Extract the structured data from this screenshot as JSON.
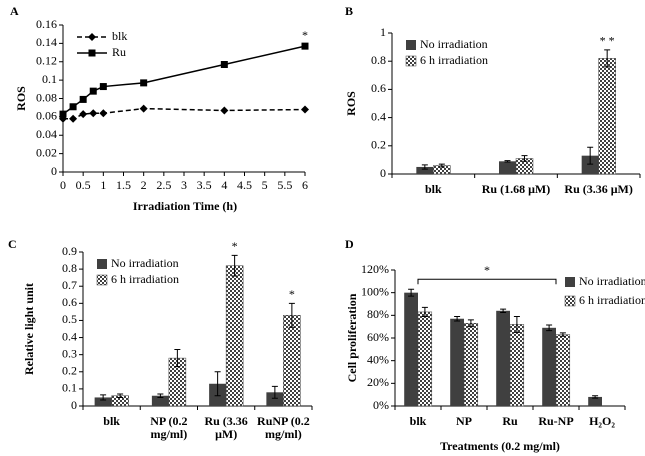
{
  "chart_data": [
    {
      "type": "line",
      "label": "A",
      "y_label": "ROS",
      "x_label": "Irradiation Time (h)",
      "x": [
        0,
        0.25,
        0.5,
        0.75,
        1,
        2,
        4,
        6
      ],
      "series": [
        {
          "name": "blk",
          "color": "#000000",
          "dash": true,
          "marker": "diamond",
          "values": [
            0.058,
            0.058,
            0.063,
            0.064,
            0.064,
            0.069,
            0.067,
            0.068
          ]
        },
        {
          "name": "Ru",
          "color": "#000000",
          "dash": false,
          "marker": "square",
          "values": [
            0.063,
            0.071,
            0.079,
            0.088,
            0.093,
            0.097,
            0.117,
            0.137
          ]
        }
      ],
      "xlim": [
        0,
        6
      ],
      "xticks": [
        0,
        0.5,
        1,
        1.5,
        2,
        2.5,
        3,
        3.5,
        4,
        4.5,
        5,
        5.5,
        6
      ],
      "ylim": [
        0,
        0.16
      ],
      "yticks": [
        0,
        0.02,
        0.04,
        0.06,
        0.08,
        0.1,
        0.12,
        0.14,
        0.16
      ],
      "legend": "top-left",
      "annotations": [
        {
          "text": "*",
          "x": 6
        }
      ]
    },
    {
      "type": "bar",
      "label": "B",
      "y_label": "ROS",
      "categories": [
        "blk",
        "Ru (1.68 μM)",
        "Ru (3.36 μM)"
      ],
      "series": [
        {
          "name": "No irradiation",
          "color": "#404040",
          "pattern": "solid",
          "values": [
            0.05,
            0.09,
            0.13
          ],
          "errors": [
            0.015,
            0.005,
            0.06
          ]
        },
        {
          "name": "6 h irradiation",
          "color": "#404040",
          "pattern": "checker",
          "values": [
            0.06,
            0.11,
            0.82
          ],
          "errors": [
            0.01,
            0.02,
            0.06
          ]
        }
      ],
      "ylim": [
        0,
        1
      ],
      "yticks": [
        0,
        0.2,
        0.4,
        0.6,
        0.8,
        1
      ],
      "legend": "top-left",
      "annotations": [
        {
          "text": "* *",
          "category": "Ru (3.36 μM)"
        }
      ]
    },
    {
      "type": "bar",
      "label": "C",
      "y_label": "Relative light unit",
      "wrap_labels": true,
      "categories": [
        "blk",
        "NP (0.2 mg/ml)",
        "Ru (3.36 μM)",
        "RuNP (0.2 mg/ml)"
      ],
      "series": [
        {
          "name": "No irradiation",
          "color": "#404040",
          "pattern": "solid",
          "values": [
            0.05,
            0.06,
            0.13,
            0.08
          ],
          "errors": [
            0.015,
            0.01,
            0.07,
            0.035
          ]
        },
        {
          "name": "6 h irradiation",
          "color": "#404040",
          "pattern": "checker",
          "values": [
            0.06,
            0.28,
            0.82,
            0.53
          ],
          "errors": [
            0.01,
            0.05,
            0.06,
            0.07
          ]
        }
      ],
      "ylim": [
        0,
        0.9
      ],
      "yticks": [
        0,
        0.1,
        0.2,
        0.3,
        0.4,
        0.5,
        0.6,
        0.7,
        0.8,
        0.9
      ],
      "legend": "top-left",
      "annotations": [
        {
          "text": "*",
          "category": "Ru (3.36 μM)"
        },
        {
          "text": "*",
          "category": "RuNP (0.2 mg/ml)"
        }
      ]
    },
    {
      "type": "bar",
      "label": "D",
      "y_label": "Cell proliferation",
      "x_label": "Treatments (0.2 mg/ml)",
      "categories": [
        "blk",
        "NP",
        "Ru",
        "Ru-NP",
        "H₂O₂"
      ],
      "series": [
        {
          "name": "No irradiation",
          "color": "#404040",
          "pattern": "solid",
          "values": [
            100,
            77,
            84,
            69,
            8
          ],
          "errors": [
            3,
            2,
            1.5,
            2.5,
            1
          ]
        },
        {
          "name": "6 h irradiation",
          "color": "#404040",
          "pattern": "checker",
          "values": [
            83,
            73,
            72,
            63,
            null
          ],
          "errors": [
            4,
            3,
            7,
            1.5,
            null
          ]
        }
      ],
      "ylim": [
        0,
        120
      ],
      "yticks": [
        {
          "value": 0,
          "label": "0%"
        },
        {
          "value": 20,
          "label": "20%"
        },
        {
          "value": 40,
          "label": "40%"
        },
        {
          "value": 60,
          "label": "60%"
        },
        {
          "value": 80,
          "label": "80%"
        },
        {
          "value": 100,
          "label": "100%"
        },
        {
          "value": 120,
          "label": "120%"
        }
      ],
      "legend": "right",
      "annotations": [
        {
          "text": "*",
          "from": "blk",
          "to": "Ru-NP"
        }
      ]
    }
  ]
}
